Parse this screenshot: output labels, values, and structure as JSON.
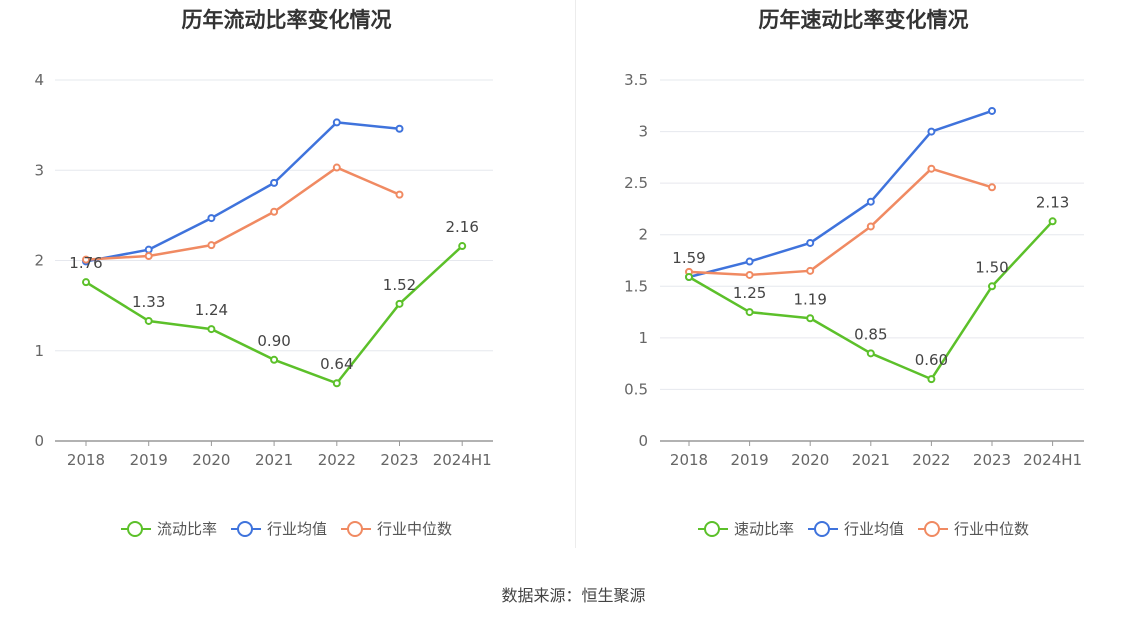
{
  "charts": [
    {
      "title": "历年流动比率变化情况",
      "chart_data": {
        "type": "line",
        "title": "历年流动比率变化情况",
        "categories": [
          "2018",
          "2019",
          "2020",
          "2021",
          "2022",
          "2023",
          "2024H1"
        ],
        "ylim": [
          0,
          4
        ],
        "yticks": [
          0,
          1,
          2,
          3,
          4
        ],
        "ytick_labels": [
          "0",
          "1",
          "2",
          "3",
          "4"
        ],
        "grid": true,
        "legend_position": "bottom",
        "series": [
          {
            "name": "流动比率",
            "color": "#5cc02a",
            "values": [
              1.76,
              1.33,
              1.24,
              0.9,
              0.64,
              1.52,
              2.16
            ],
            "labels": [
              "1.76",
              "1.33",
              "1.24",
              "0.90",
              "0.64",
              "1.52",
              "2.16"
            ]
          },
          {
            "name": "行业均值",
            "color": "#3f73dc",
            "values": [
              1.99,
              2.12,
              2.47,
              2.86,
              3.53,
              3.46,
              null
            ]
          },
          {
            "name": "行业中位数",
            "color": "#f08a62",
            "values": [
              2.01,
              2.05,
              2.17,
              2.54,
              3.03,
              2.73,
              null
            ]
          }
        ]
      }
    },
    {
      "title": "历年速动比率变化情况",
      "chart_data": {
        "type": "line",
        "title": "历年速动比率变化情况",
        "categories": [
          "2018",
          "2019",
          "2020",
          "2021",
          "2022",
          "2023",
          "2024H1"
        ],
        "ylim": [
          0,
          3.5
        ],
        "yticks": [
          0,
          0.5,
          1,
          1.5,
          2,
          2.5,
          3,
          3.5
        ],
        "ytick_labels": [
          "0",
          "0.5",
          "1",
          "1.5",
          "2",
          "2.5",
          "3",
          "3.5"
        ],
        "grid": true,
        "legend_position": "bottom",
        "series": [
          {
            "name": "速动比率",
            "color": "#5cc02a",
            "values": [
              1.59,
              1.25,
              1.19,
              0.85,
              0.6,
              1.5,
              2.13
            ],
            "labels": [
              "1.59",
              "1.25",
              "1.19",
              "0.85",
              "0.60",
              "1.50",
              "2.13"
            ]
          },
          {
            "name": "行业均值",
            "color": "#3f73dc",
            "values": [
              1.59,
              1.74,
              1.92,
              2.32,
              3.0,
              3.2,
              null
            ]
          },
          {
            "name": "行业中位数",
            "color": "#f08a62",
            "values": [
              1.64,
              1.61,
              1.65,
              2.08,
              2.64,
              2.46,
              null
            ]
          }
        ]
      }
    }
  ],
  "source": "数据来源：恒生聚源"
}
